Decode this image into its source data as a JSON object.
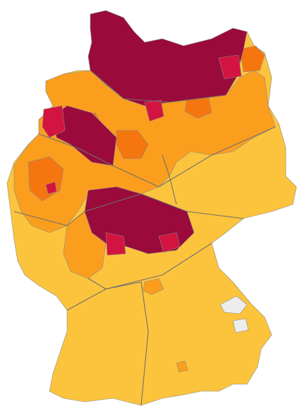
{
  "map": {
    "palette": {
      "low": "#fcc43c",
      "mid": "#fb9e1e",
      "high": "#f5760f",
      "veryhigh": "#d31440",
      "extreme": "#9a0b3c",
      "nodata": "#ededed"
    }
  }
}
